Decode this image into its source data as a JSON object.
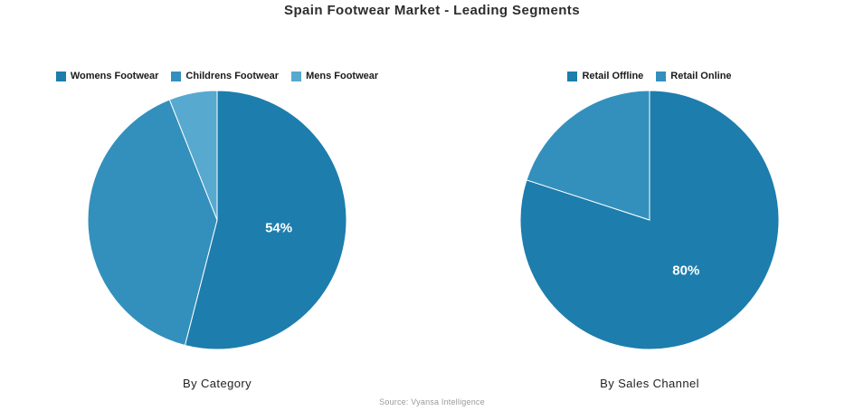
{
  "title": "Spain Footwear Market - Leading Segments",
  "source": "Source: Vyansa Intelligence",
  "chart_data": [
    {
      "type": "pie",
      "caption": "By Category",
      "legend_position": "top",
      "start_angle_deg": 0,
      "direction": "clockwise",
      "slices": [
        {
          "label": "Womens Footwear",
          "value": 54,
          "color": "#1d7dad",
          "data_label": "54%"
        },
        {
          "label": "Childrens Footwear",
          "value": 40,
          "color": "#3390bd",
          "data_label": ""
        },
        {
          "label": "Mens Footwear",
          "value": 6,
          "color": "#57a9cf",
          "data_label": ""
        }
      ]
    },
    {
      "type": "pie",
      "caption": "By Sales Channel",
      "legend_position": "top",
      "start_angle_deg": 0,
      "direction": "clockwise",
      "slices": [
        {
          "label": "Retail Offline",
          "value": 80,
          "color": "#1d7dad",
          "data_label": "80%"
        },
        {
          "label": "Retail Online",
          "value": 20,
          "color": "#3390bd",
          "data_label": ""
        }
      ]
    }
  ]
}
